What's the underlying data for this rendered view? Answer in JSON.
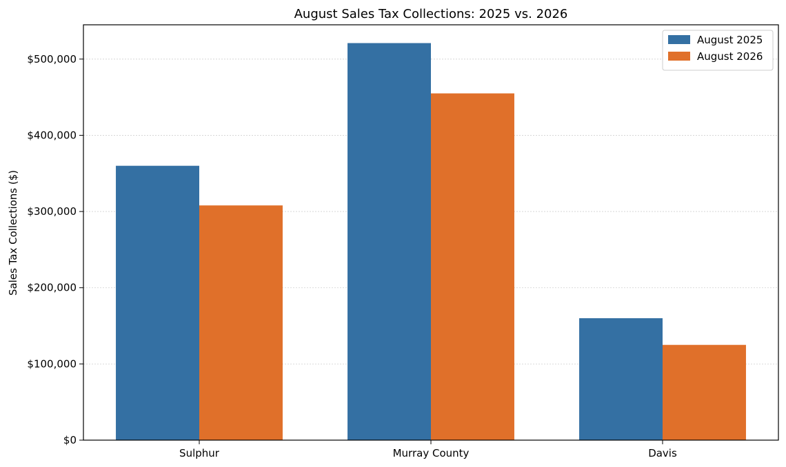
{
  "chart_data": {
    "type": "bar",
    "title": "August Sales Tax Collections: 2025 vs. 2026",
    "xlabel": "",
    "ylabel": "Sales Tax Collections ($)",
    "categories": [
      "Sulphur",
      "Murray County",
      "Davis"
    ],
    "series": [
      {
        "name": "August 2025",
        "color": "#3470a3",
        "values": [
          360000,
          521000,
          160000
        ]
      },
      {
        "name": "August 2026",
        "color": "#e0702a",
        "values": [
          308000,
          455000,
          125000
        ]
      }
    ],
    "ylim": [
      0,
      545000
    ],
    "yticks": [
      0,
      100000,
      200000,
      300000,
      400000,
      500000
    ],
    "ytick_labels": [
      "$0",
      "$100,000",
      "$200,000",
      "$300,000",
      "$400,000",
      "$500,000"
    ],
    "grid": "horizontal",
    "legend_position": "top-right"
  }
}
